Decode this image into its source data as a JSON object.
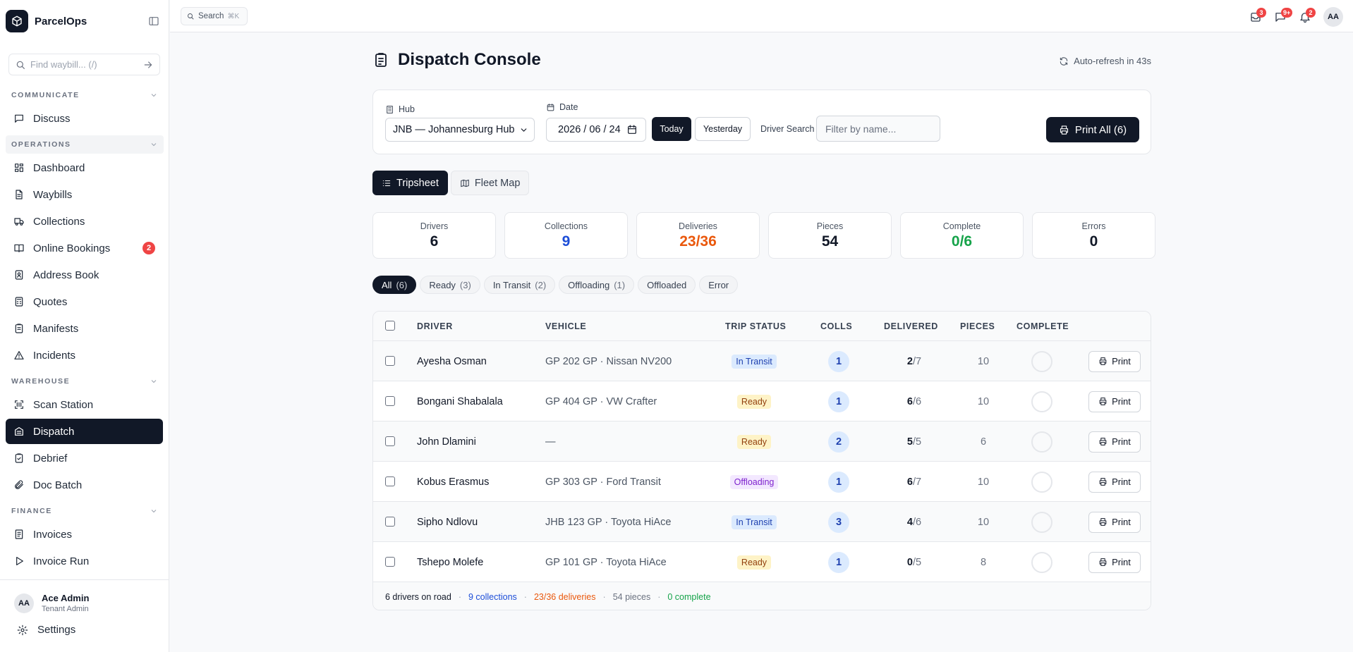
{
  "app": {
    "name": "ParcelOps"
  },
  "sidebar": {
    "search_placeholder": "Find waybill... (/)",
    "sections": [
      {
        "label": "COMMUNICATE",
        "items": [
          {
            "label": "Discuss",
            "icon": "message-square-icon"
          }
        ]
      },
      {
        "label": "OPERATIONS",
        "items": [
          {
            "label": "Dashboard",
            "icon": "grid-icon"
          },
          {
            "label": "Waybills",
            "icon": "file-icon"
          },
          {
            "label": "Collections",
            "icon": "truck-icon"
          },
          {
            "label": "Online Bookings",
            "icon": "book-icon",
            "badge": "2"
          },
          {
            "label": "Address Book",
            "icon": "address-book-icon"
          },
          {
            "label": "Quotes",
            "icon": "calculator-icon"
          },
          {
            "label": "Manifests",
            "icon": "clipboard-icon"
          },
          {
            "label": "Incidents",
            "icon": "alert-triangle-icon"
          }
        ]
      },
      {
        "label": "WAREHOUSE",
        "items": [
          {
            "label": "Scan Station",
            "icon": "scan-icon"
          },
          {
            "label": "Dispatch",
            "icon": "dispatch-icon",
            "active": true
          },
          {
            "label": "Debrief",
            "icon": "clipboard-check-icon"
          },
          {
            "label": "Doc Batch",
            "icon": "paperclip-icon"
          }
        ]
      },
      {
        "label": "FINANCE",
        "items": [
          {
            "label": "Invoices",
            "icon": "receipt-icon"
          },
          {
            "label": "Invoice Run",
            "icon": "play-icon"
          }
        ]
      }
    ],
    "user": {
      "initials": "AA",
      "name": "Ace Admin",
      "role": "Tenant Admin"
    },
    "settings_label": "Settings"
  },
  "topbar": {
    "search_label": "Search",
    "search_kbd": "⌘K",
    "badges": {
      "inbox": "3",
      "chat": "9+",
      "bell": "2"
    },
    "avatar": "AA"
  },
  "page": {
    "title": "Dispatch Console",
    "refresh": "Auto-refresh in 43s",
    "filters": {
      "hub_label": "Hub",
      "hub_value": "JNB — Johannesburg Hub",
      "date_label": "Date",
      "date_value": "2026 / 06 / 24",
      "today": "Today",
      "yesterday": "Yesterday",
      "driver_search_label": "Driver Search",
      "driver_search_placeholder": "Filter by name...",
      "print_all": "Print All (6)"
    },
    "view_tabs": [
      {
        "label": "Tripsheet",
        "active": true
      },
      {
        "label": "Fleet Map",
        "active": false
      }
    ],
    "stats": [
      {
        "label": "Drivers",
        "value": "6",
        "color": "#111827"
      },
      {
        "label": "Collections",
        "value": "9",
        "color": "#1d4ed8"
      },
      {
        "label": "Deliveries",
        "value": "23/36",
        "color": "#ea580c"
      },
      {
        "label": "Pieces",
        "value": "54",
        "color": "#111827"
      },
      {
        "label": "Complete",
        "value": "0/6",
        "color": "#16a34a"
      },
      {
        "label": "Errors",
        "value": "0",
        "color": "#111827"
      }
    ],
    "status_filters": [
      {
        "label": "All",
        "count": "(6)",
        "active": true
      },
      {
        "label": "Ready",
        "count": "(3)"
      },
      {
        "label": "In Transit",
        "count": "(2)"
      },
      {
        "label": "Offloading",
        "count": "(1)"
      },
      {
        "label": "Offloaded",
        "count": ""
      },
      {
        "label": "Error",
        "count": ""
      }
    ],
    "table": {
      "columns": [
        "DRIVER",
        "VEHICLE",
        "TRIP STATUS",
        "COLLS",
        "DELIVERED",
        "PIECES",
        "COMPLETE"
      ],
      "print_label": "Print",
      "rows": [
        {
          "driver": "Ayesha Osman",
          "vehicle": "GP 202 GP · Nissan NV200",
          "status": "In Transit",
          "colls": "1",
          "delivered": "2",
          "total": "/7",
          "pieces": "10"
        },
        {
          "driver": "Bongani Shabalala",
          "vehicle": "GP 404 GP · VW Crafter",
          "status": "Ready",
          "colls": "1",
          "delivered": "6",
          "total": "/6",
          "pieces": "10"
        },
        {
          "driver": "John Dlamini",
          "vehicle": "—",
          "status": "Ready",
          "colls": "2",
          "delivered": "5",
          "total": "/5",
          "pieces": "6"
        },
        {
          "driver": "Kobus Erasmus",
          "vehicle": "GP 303 GP · Ford Transit",
          "status": "Offloading",
          "colls": "1",
          "delivered": "6",
          "total": "/7",
          "pieces": "10"
        },
        {
          "driver": "Sipho Ndlovu",
          "vehicle": "JHB 123 GP · Toyota HiAce",
          "status": "In Transit",
          "colls": "3",
          "delivered": "4",
          "total": "/6",
          "pieces": "10"
        },
        {
          "driver": "Tshepo Molefe",
          "vehicle": "GP 101 GP · Toyota HiAce",
          "status": "Ready",
          "colls": "1",
          "delivered": "0",
          "total": "/5",
          "pieces": "8"
        }
      ],
      "footer": {
        "drivers": "6 drivers on road",
        "collections": "9 collections",
        "deliveries": "23/36 deliveries",
        "pieces": "54 pieces",
        "complete": "0 complete",
        "separator": "·"
      }
    }
  }
}
